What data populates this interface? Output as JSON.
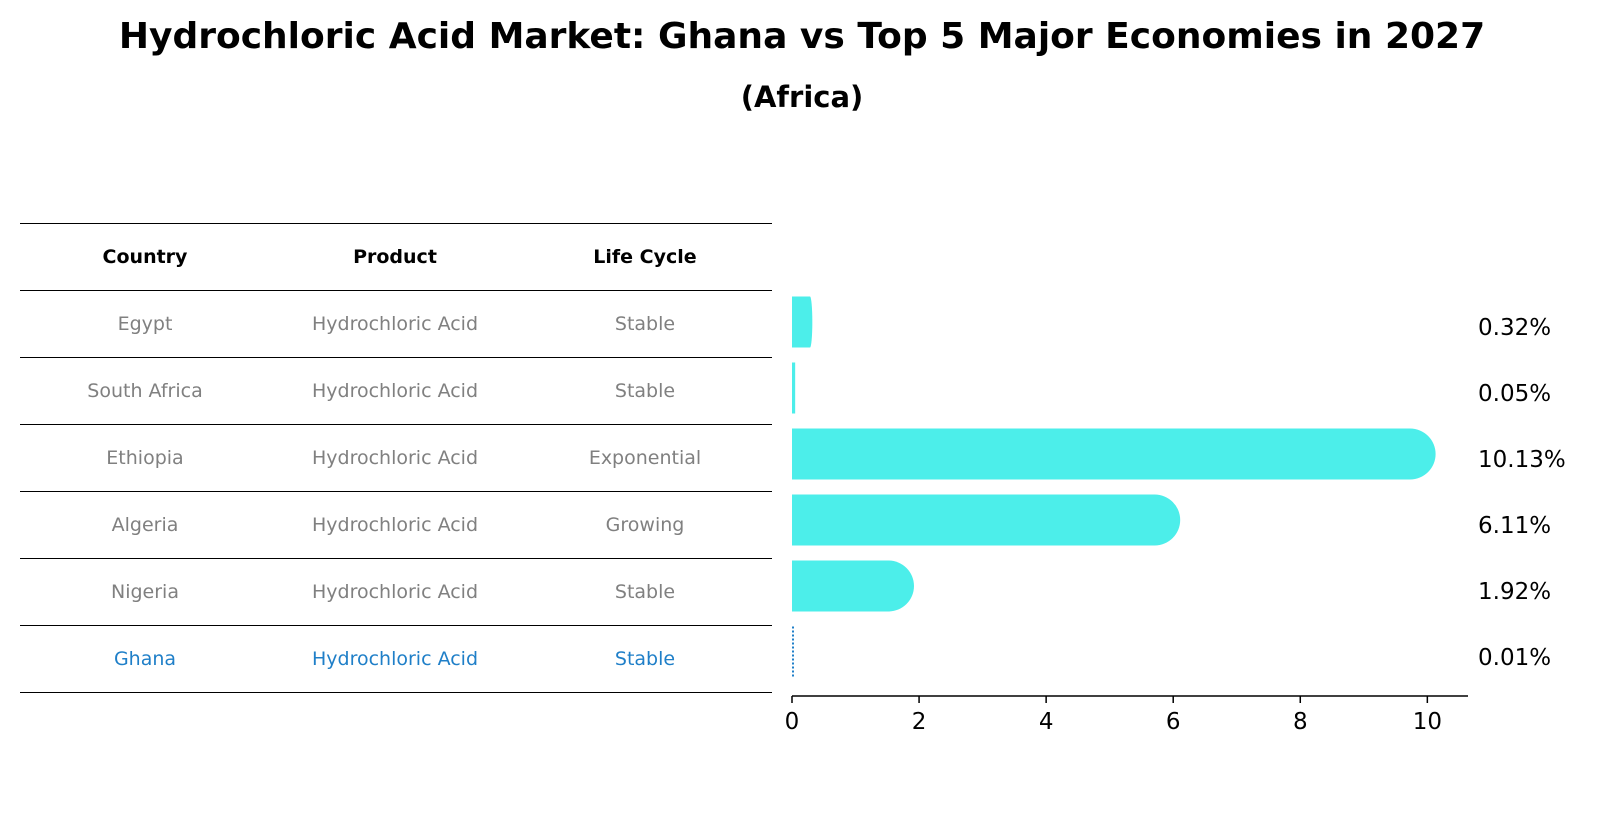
{
  "title": "Hydrochloric Acid Market: Ghana vs Top 5 Major Economies in 2027",
  "subtitle": "(Africa)",
  "table": {
    "headers": [
      "Country",
      "Product",
      "Life Cycle"
    ],
    "rows": [
      {
        "country": "Egypt",
        "product": "Hydrochloric Acid",
        "life_cycle": "Stable"
      },
      {
        "country": "South Africa",
        "product": "Hydrochloric Acid",
        "life_cycle": "Stable"
      },
      {
        "country": "Ethiopia",
        "product": "Hydrochloric Acid",
        "life_cycle": "Exponential"
      },
      {
        "country": "Algeria",
        "product": "Hydrochloric Acid",
        "life_cycle": "Growing"
      },
      {
        "country": "Nigeria",
        "product": "Hydrochloric Acid",
        "life_cycle": "Stable"
      },
      {
        "country": "Ghana",
        "product": "Hydrochloric Acid",
        "life_cycle": "Stable"
      }
    ],
    "highlight_row": "Ghana",
    "text_color": "#808080",
    "highlight_color": "#1f7fc8"
  },
  "chart_data": {
    "type": "bar",
    "orientation": "horizontal",
    "categories": [
      "Egypt",
      "South Africa",
      "Ethiopia",
      "Algeria",
      "Nigeria",
      "Ghana"
    ],
    "values": [
      0.32,
      0.05,
      10.13,
      6.11,
      1.92,
      0.01
    ],
    "value_labels": [
      "0.32%",
      "0.05%",
      "10.13%",
      "6.11%",
      "1.92%",
      "0.01%"
    ],
    "xlim": [
      0,
      10.64
    ],
    "xticks": [
      0,
      2,
      4,
      6,
      8,
      10
    ],
    "bar_color": "#4ceeea",
    "highlight_color": "#1f7fc8",
    "grid": false
  }
}
